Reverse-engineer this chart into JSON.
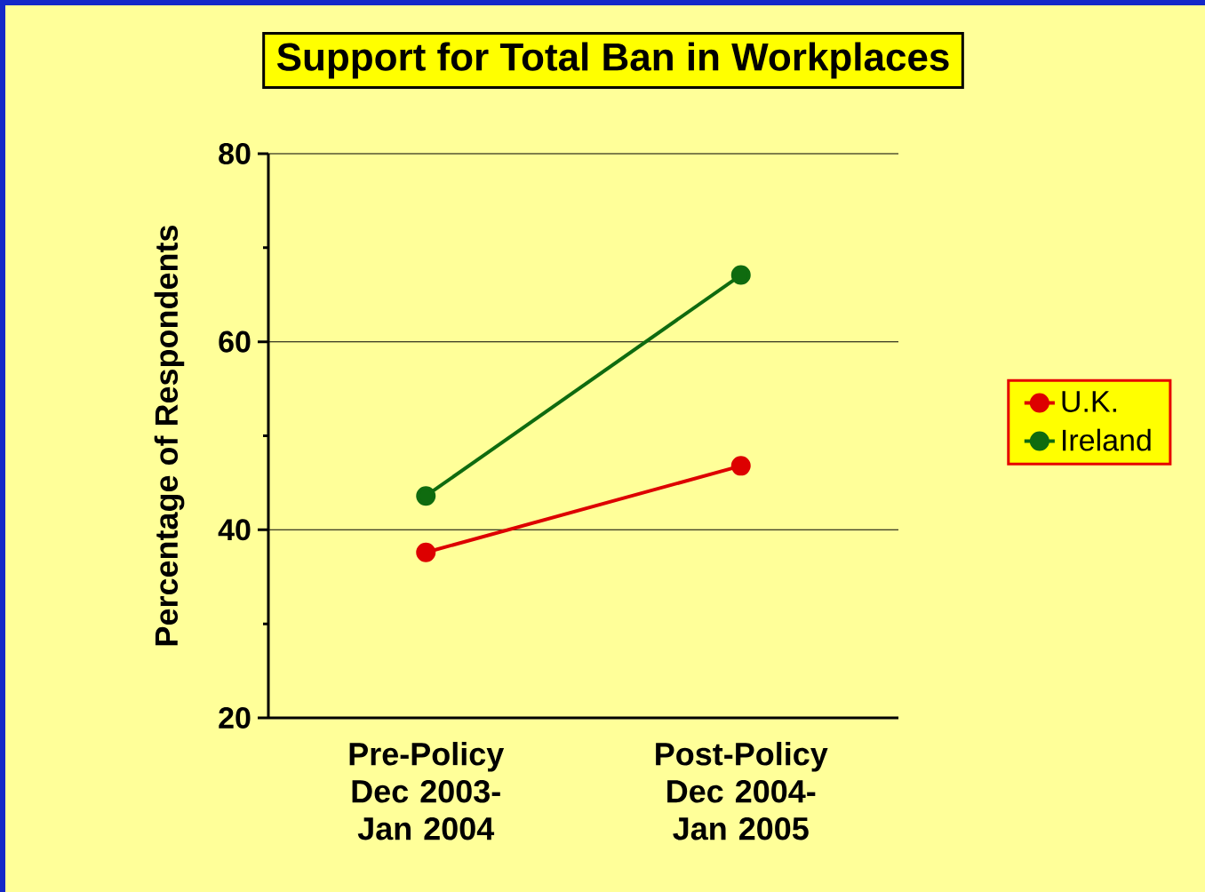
{
  "chart_data": {
    "type": "line",
    "title": "Support for Total Ban in Workplaces",
    "ylabel": "Percentage of Respondents",
    "categories": [
      "Pre-Policy Dec 2003- Jan 2004",
      "Post-Policy Dec 2004- Jan 2005"
    ],
    "series": [
      {
        "name": "U.K.",
        "color": "#dd0000",
        "values": [
          37.6,
          46.8
        ]
      },
      {
        "name": "Ireland",
        "color": "#0f6b0f",
        "values": [
          43.6,
          67.1
        ]
      }
    ],
    "ylim": [
      20,
      80
    ],
    "yticks": [
      20,
      {
        "value": 30,
        "label": null
      },
      40,
      {
        "value": 50,
        "label": null
      },
      60,
      {
        "value": 70,
        "label": null
      },
      80
    ],
    "grid": "y",
    "legend": "right",
    "marker": "circle",
    "line_style": "solid"
  }
}
